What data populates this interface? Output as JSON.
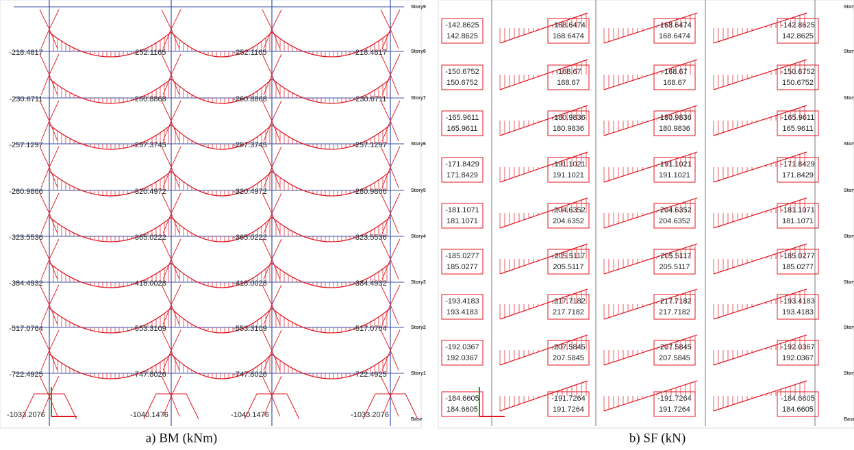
{
  "story_labels": [
    "Story9",
    "Story8",
    "Story7",
    "Story6",
    "Story5",
    "Story4",
    "Story3",
    "Story2",
    "Story1",
    "Base"
  ],
  "panels": [
    {
      "caption": "a) BM (kNm)",
      "rows": [
        {
          "end": "-218.4817",
          "mid": "-252.1165"
        },
        {
          "end": "-230.6711",
          "mid": "-260.8868"
        },
        {
          "end": "-257.1297",
          "mid": "-297.3745"
        },
        {
          "end": "-280.9866",
          "mid": "-320.4972"
        },
        {
          "end": "-323.5536",
          "mid": "-365.0222"
        },
        {
          "end": "-384.4932",
          "mid": "-418.0028"
        },
        {
          "end": "-517.0764",
          "mid": "-553.3109"
        },
        {
          "end": "-722.4925",
          "mid": "-747.8026"
        },
        {
          "end": "-1033.2076",
          "mid": "-1040.1476"
        }
      ]
    },
    {
      "caption": "b) SF (kN)",
      "rows": [
        {
          "end": [
            "-142.8625",
            "142.8625"
          ],
          "mid": [
            "-168.6474",
            "168.6474"
          ]
        },
        {
          "end": [
            "-150.6752",
            "150.6752"
          ],
          "mid": [
            "-168.67",
            "168.67"
          ]
        },
        {
          "end": [
            "-165.9611",
            "165.9611"
          ],
          "mid": [
            "-180.9836",
            "180.9836"
          ]
        },
        {
          "end": [
            "-171.8429",
            "171.8429"
          ],
          "mid": [
            "-191.1021",
            "191.1021"
          ]
        },
        {
          "end": [
            "-181.1071",
            "181.1071"
          ],
          "mid": [
            "-204.6352",
            "204.6352"
          ]
        },
        {
          "end": [
            "-185.0277",
            "185.0277"
          ],
          "mid": [
            "-205.5117",
            "205.5117"
          ]
        },
        {
          "end": [
            "-193.4183",
            "193.4183"
          ],
          "mid": [
            "-217.7182",
            "217.7182"
          ]
        },
        {
          "end": [
            "-192.0367",
            "192.0367"
          ],
          "mid": [
            "-207.5845",
            "207.5845"
          ]
        },
        {
          "end": [
            "-184.6605",
            "184.6605"
          ],
          "mid": [
            "-191.7264",
            "191.7264"
          ]
        }
      ]
    }
  ]
}
